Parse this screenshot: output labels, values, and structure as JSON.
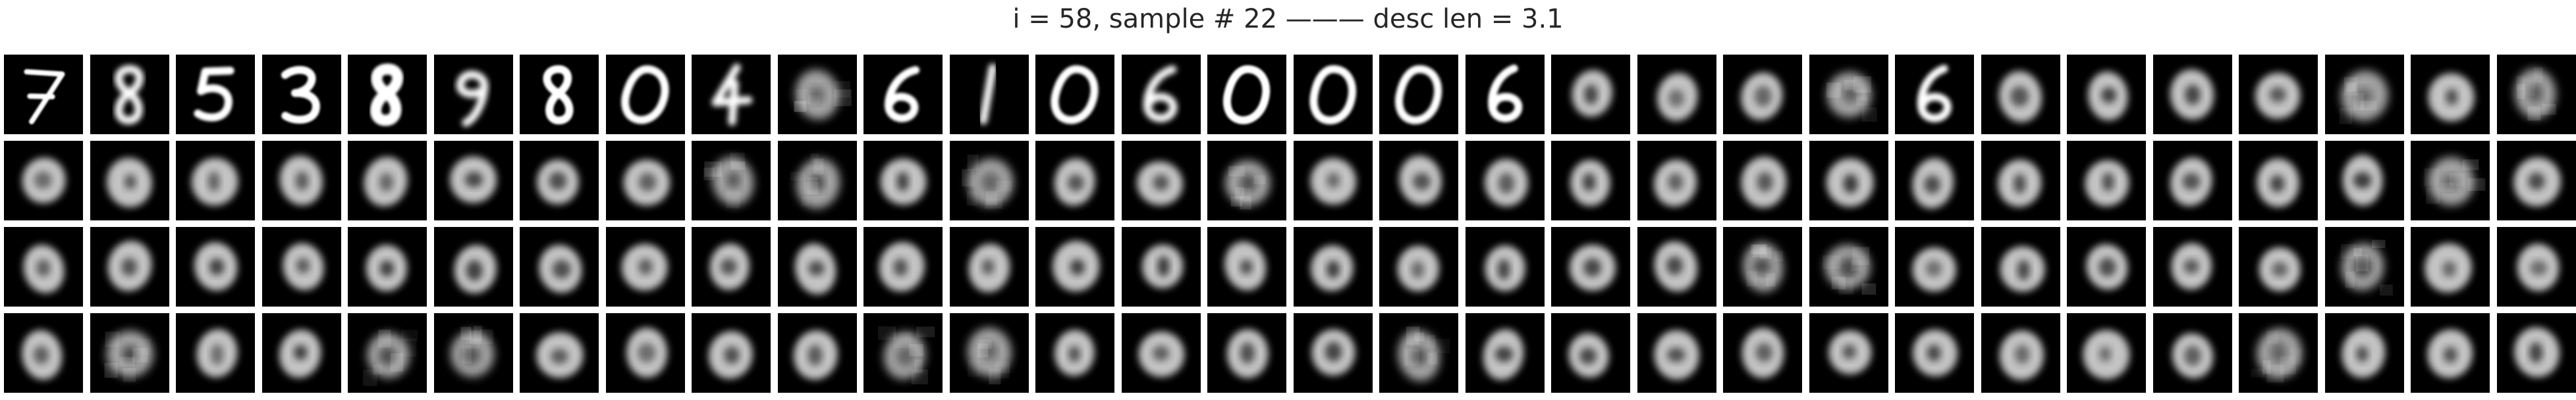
{
  "figure": {
    "title": "i = 58, sample # 22 ——— desc len = 3.1"
  },
  "grid": {
    "rows": 4,
    "columns": 30,
    "background_color": "#000000",
    "stroke_color": "#ffffff",
    "first_row_sequence": [
      {
        "index": 0,
        "kind": "digit",
        "glyph": "7",
        "style": "thin, slanted"
      },
      {
        "index": 1,
        "kind": "digit",
        "glyph": "8",
        "style": "blurry"
      },
      {
        "index": 2,
        "kind": "digit",
        "glyph": "5",
        "style": "scribbled"
      },
      {
        "index": 3,
        "kind": "digit",
        "glyph": "3",
        "style": "clear"
      },
      {
        "index": 4,
        "kind": "digit",
        "glyph": "8",
        "style": "bold"
      },
      {
        "index": 5,
        "kind": "digit",
        "glyph": "9",
        "style": "blurry"
      },
      {
        "index": 6,
        "kind": "digit",
        "glyph": "8",
        "style": "clear"
      },
      {
        "index": 7,
        "kind": "digit",
        "glyph": "0",
        "style": "slanted"
      },
      {
        "index": 8,
        "kind": "digit",
        "glyph": "4",
        "style": "blurry"
      },
      {
        "index": 9,
        "kind": "blob",
        "glyph": "0",
        "style": "fuzzy"
      },
      {
        "index": 10,
        "kind": "digit",
        "glyph": "6",
        "style": "slanted"
      },
      {
        "index": 11,
        "kind": "digit",
        "glyph": "1",
        "style": "blurry"
      },
      {
        "index": 12,
        "kind": "digit",
        "glyph": "0",
        "style": "slanted"
      },
      {
        "index": 13,
        "kind": "digit",
        "glyph": "6",
        "style": "blurry"
      },
      {
        "index": 14,
        "kind": "digit",
        "glyph": "0",
        "style": "clear"
      },
      {
        "index": 15,
        "kind": "digit",
        "glyph": "0",
        "style": "wide"
      },
      {
        "index": 16,
        "kind": "digit",
        "glyph": "0",
        "style": "small"
      },
      {
        "index": 17,
        "kind": "digit",
        "glyph": "6",
        "style": "slanted"
      },
      {
        "index": 18,
        "kind": "blob",
        "glyph": "0",
        "style": "soft"
      },
      {
        "index": 19,
        "kind": "blob",
        "glyph": "0",
        "style": "soft"
      },
      {
        "index": 20,
        "kind": "blob",
        "glyph": "0",
        "style": "soft"
      },
      {
        "index": 21,
        "kind": "blob",
        "glyph": "0",
        "style": "fuzzy"
      },
      {
        "index": 22,
        "kind": "digit",
        "glyph": "6",
        "style": "soft"
      },
      {
        "index": 23,
        "kind": "blob",
        "glyph": "0",
        "style": "soft"
      },
      {
        "index": 24,
        "kind": "blob",
        "glyph": "0",
        "style": "soft"
      },
      {
        "index": 25,
        "kind": "blob",
        "glyph": "0",
        "style": "soft"
      },
      {
        "index": 26,
        "kind": "blob",
        "glyph": "0",
        "style": "soft"
      },
      {
        "index": 27,
        "kind": "blob",
        "glyph": "0",
        "style": "fuzzy"
      },
      {
        "index": 28,
        "kind": "blob",
        "glyph": "0",
        "style": "soft"
      },
      {
        "index": 29,
        "kind": "blob",
        "glyph": "0",
        "style": "fuzzy"
      }
    ],
    "remaining_rows_kind": "blob"
  }
}
